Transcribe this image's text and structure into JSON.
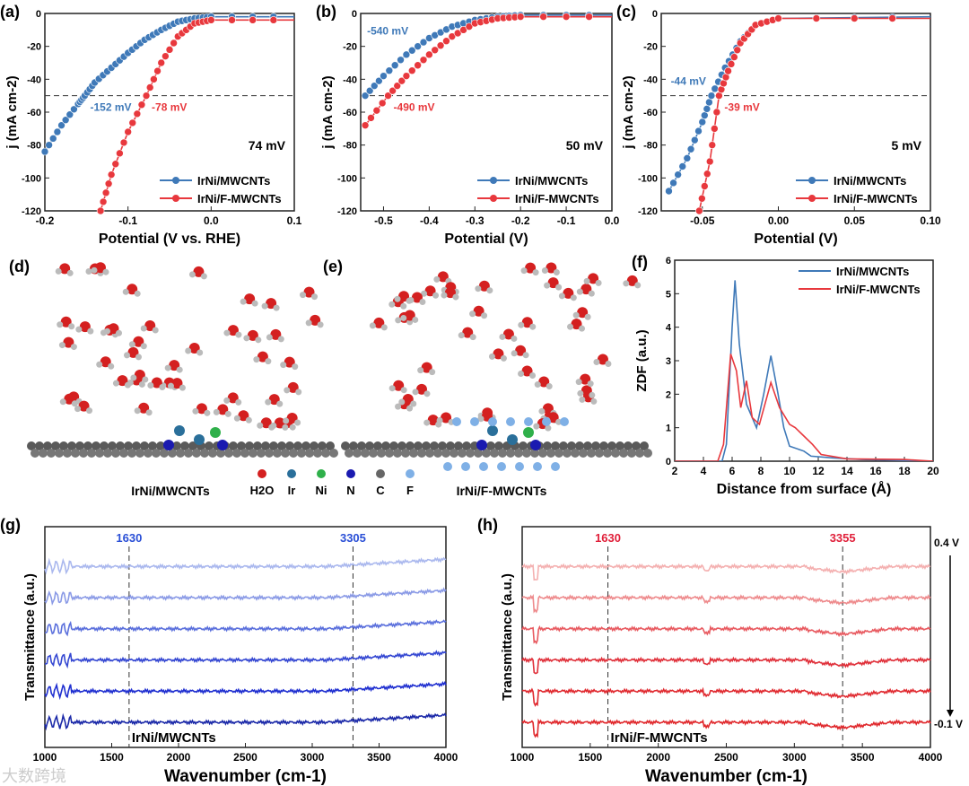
{
  "colors": {
    "blue": "#3f79b8",
    "red": "#e8383d",
    "darkblue": "#1f2fd0"
  },
  "watermark": "大数跨境",
  "chart_data": [
    {
      "id": "a",
      "type": "line",
      "panel_label": "(a)",
      "xlabel": "Potential (V vs. RHE)",
      "ylabel": "j (mA cm-2)",
      "xlim": [
        -0.2,
        0.1
      ],
      "ylim": [
        -120,
        0
      ],
      "xticks": [
        -0.2,
        -0.1,
        0.0,
        0.1
      ],
      "xtick_labels": [
        "-0.2",
        "-0.1",
        "0.0",
        "0.1"
      ],
      "yticks": [
        0,
        -20,
        -40,
        -60,
        -80,
        -100,
        -120
      ],
      "ytick_labels": [
        "0",
        "-20",
        "-40",
        "-60",
        "-80",
        "-100",
        "-120"
      ],
      "reference_line": -50,
      "note": "74 mV",
      "annotations": [
        {
          "text": "-152 mV",
          "series": 0,
          "x": -0.152
        },
        {
          "text": "-78 mV",
          "series": 1,
          "x": -0.078
        }
      ],
      "legend": "bottom-right",
      "series": [
        {
          "name": "IrNi/MWCNTs",
          "color": "#3f79b8",
          "x": [
            -0.2,
            -0.18,
            -0.16,
            -0.152,
            -0.14,
            -0.12,
            -0.1,
            -0.08,
            -0.06,
            -0.04,
            -0.02,
            0,
            0.1
          ],
          "y": [
            -84,
            -68,
            -55,
            -50,
            -42,
            -33,
            -24,
            -16,
            -10,
            -5,
            -3,
            -2,
            -2
          ]
        },
        {
          "name": "IrNi/F-MWCNTs",
          "color": "#e8383d",
          "x": [
            -0.133,
            -0.12,
            -0.1,
            -0.078,
            -0.06,
            -0.04,
            -0.02,
            0,
            0.1
          ],
          "y": [
            -120,
            -98,
            -72,
            -50,
            -30,
            -14,
            -6,
            -4,
            -4
          ]
        }
      ]
    },
    {
      "id": "b",
      "type": "line",
      "panel_label": "(b)",
      "xlabel": "Potential (V)",
      "ylabel": "j (mA cm-2)",
      "xlim": [
        -0.55,
        0
      ],
      "ylim": [
        -120,
        0
      ],
      "xticks": [
        -0.5,
        -0.4,
        -0.3,
        -0.2,
        -0.1,
        0.0
      ],
      "xtick_labels": [
        "-0.5",
        "-0.4",
        "-0.3",
        "-0.2",
        "-0.1",
        "0.0"
      ],
      "yticks": [
        0,
        -20,
        -40,
        -60,
        -80,
        -100,
        -120
      ],
      "ytick_labels": [
        "0",
        "-20",
        "-40",
        "-60",
        "-80",
        "-100",
        "-120"
      ],
      "reference_line": -50,
      "note": "50 mV",
      "annotations": [
        {
          "text": "-540 mV",
          "series": 0,
          "x": -0.54
        },
        {
          "text": "-490 mV",
          "series": 1,
          "x": -0.49
        }
      ],
      "legend": "bottom-right",
      "series": [
        {
          "name": "IrNi/MWCNTs",
          "color": "#3f79b8",
          "x": [
            -0.54,
            -0.5,
            -0.45,
            -0.4,
            -0.35,
            -0.3,
            -0.25,
            -0.2,
            0
          ],
          "y": [
            -50,
            -38,
            -25,
            -15,
            -8,
            -4,
            -2,
            -1,
            -1
          ]
        },
        {
          "name": "IrNi/F-MWCNTs",
          "color": "#e8383d",
          "x": [
            -0.54,
            -0.49,
            -0.45,
            -0.4,
            -0.35,
            -0.3,
            -0.25,
            -0.2,
            0
          ],
          "y": [
            -68,
            -50,
            -38,
            -25,
            -14,
            -6,
            -3,
            -2,
            -2
          ]
        }
      ]
    },
    {
      "id": "c",
      "type": "line",
      "panel_label": "(c)",
      "xlabel": "Potential (V)",
      "ylabel": "j (mA cm-2)",
      "xlim": [
        -0.077,
        0.1
      ],
      "ylim": [
        -120,
        0
      ],
      "xticks": [
        -0.05,
        0.0,
        0.05,
        0.1
      ],
      "xtick_labels": [
        "-0.05",
        "0.00",
        "0.05",
        "0.10"
      ],
      "yticks": [
        0,
        -20,
        -40,
        -60,
        -80,
        -100,
        -120
      ],
      "ytick_labels": [
        "0",
        "-20",
        "-40",
        "-60",
        "-80",
        "-100",
        "-120"
      ],
      "reference_line": -50,
      "note": "5 mV",
      "annotations": [
        {
          "text": "-44 mV",
          "series": 0,
          "x": -0.044
        },
        {
          "text": "-39 mV",
          "series": 1,
          "x": -0.039
        }
      ],
      "legend": "bottom-right",
      "series": [
        {
          "name": "IrNi/MWCNTs",
          "color": "#3f79b8",
          "x": [
            -0.072,
            -0.06,
            -0.05,
            -0.044,
            -0.035,
            -0.025,
            -0.015,
            0,
            0.1
          ],
          "y": [
            -108,
            -88,
            -66,
            -50,
            -33,
            -17,
            -7,
            -3,
            -2
          ]
        },
        {
          "name": "IrNi/F-MWCNTs",
          "color": "#e8383d",
          "x": [
            -0.052,
            -0.045,
            -0.039,
            -0.033,
            -0.025,
            -0.015,
            0,
            0.1
          ],
          "y": [
            -120,
            -90,
            -50,
            -35,
            -18,
            -7,
            -3,
            -3
          ]
        }
      ]
    },
    {
      "id": "f",
      "type": "line",
      "panel_label": "(f)",
      "xlabel": "Distance from surface (Å)",
      "ylabel": "ZDF (a.u.)",
      "xlim": [
        2,
        20
      ],
      "ylim": [
        0,
        6
      ],
      "xticks": [
        2,
        4,
        6,
        8,
        10,
        12,
        14,
        16,
        18,
        20
      ],
      "xtick_labels": [
        "2",
        "4",
        "6",
        "8",
        "10",
        "12",
        "14",
        "16",
        "18",
        "20"
      ],
      "yticks": [
        0,
        1,
        2,
        3,
        4,
        5,
        6
      ],
      "ytick_labels": [
        "0",
        "1",
        "2",
        "3",
        "4",
        "5",
        "6"
      ],
      "legend": "top-right",
      "series": [
        {
          "name": "IrNi/MWCNTs",
          "color": "#3f79b8",
          "x": [
            2,
            5.3,
            5.6,
            6,
            6.2,
            6.5,
            7,
            7.7,
            8.2,
            8.7,
            9.2,
            9.6,
            10,
            11,
            11.5,
            13,
            15,
            20
          ],
          "y": [
            0,
            0,
            0.5,
            4,
            5.4,
            3.5,
            1.7,
            1.0,
            2,
            3.15,
            2,
            1,
            0.45,
            0.3,
            0.15,
            0.1,
            0.05,
            0
          ]
        },
        {
          "name": "IrNi/F-MWCNTs",
          "color": "#e8383d",
          "x": [
            2,
            5,
            5.4,
            5.9,
            6.3,
            6.6,
            7,
            7.4,
            7.9,
            8.7,
            9.3,
            10,
            10.4,
            11,
            11.6,
            12.2,
            14,
            18,
            20
          ],
          "y": [
            0,
            0,
            0.5,
            3.2,
            2.7,
            1.6,
            2.4,
            1.3,
            1.1,
            2.35,
            1.6,
            1.1,
            1,
            0.75,
            0.5,
            0.2,
            0.07,
            0.05,
            0
          ]
        }
      ]
    },
    {
      "id": "g",
      "type": "line",
      "panel_label": "(g)",
      "xlabel": "Wavenumber (cm-1)",
      "ylabel": "Transmittance (a.u.)",
      "xlim": [
        1000,
        4000
      ],
      "xticks": [
        1000,
        1500,
        2000,
        2500,
        3000,
        3500,
        4000
      ],
      "xtick_labels": [
        "1000",
        "1500",
        "2000",
        "2500",
        "3000",
        "3500",
        "4000"
      ],
      "markers": [
        {
          "x": 1630,
          "text": "1630"
        },
        {
          "x": 3305,
          "text": "3305"
        }
      ],
      "marker_color": "#2a4fd6",
      "sample": "IrNi/MWCNTs",
      "series": [
        {
          "color": "#aab8ee",
          "offset": 5
        },
        {
          "color": "#8a9ae6",
          "offset": 4
        },
        {
          "color": "#5a6fdc",
          "offset": 3
        },
        {
          "color": "#3447d2",
          "offset": 2
        },
        {
          "color": "#1f2fd0",
          "offset": 1
        },
        {
          "color": "#1a28a8",
          "offset": 0
        }
      ]
    },
    {
      "id": "h",
      "type": "line",
      "panel_label": "(h)",
      "xlabel": "Wavenumber (cm-1)",
      "ylabel": "Transmittance (a.u.)",
      "xlim": [
        1000,
        4000
      ],
      "xticks": [
        1000,
        1500,
        2000,
        2500,
        3000,
        3500,
        4000
      ],
      "xtick_labels": [
        "1000",
        "1500",
        "2000",
        "2500",
        "3000",
        "3500",
        "4000"
      ],
      "markers": [
        {
          "x": 1630,
          "text": "1630"
        },
        {
          "x": 3355,
          "text": "3355"
        }
      ],
      "marker_color": "#e0203a",
      "sample": "IrNi/F-MWCNTs",
      "potential_top": "0.4 V",
      "potential_bottom": "-0.1 V",
      "series": [
        {
          "color": "#f4b0b0",
          "offset": 5
        },
        {
          "color": "#ee8a8c",
          "offset": 4
        },
        {
          "color": "#e85a60",
          "offset": 3
        },
        {
          "color": "#e0303a",
          "offset": 2
        },
        {
          "color": "#e02a30",
          "offset": 1
        },
        {
          "color": "#e0282c",
          "offset": 0
        }
      ]
    }
  ],
  "structures": {
    "d": {
      "panel_label": "(d)",
      "caption": "IrNi/MWCNTs"
    },
    "e": {
      "panel_label": "(e)",
      "caption": "IrNi/F-MWCNTs"
    },
    "legend": [
      {
        "label": "H2O",
        "color": "#d42020"
      },
      {
        "label": "Ir",
        "color": "#2a6f9a"
      },
      {
        "label": "Ni",
        "color": "#2fb04a"
      },
      {
        "label": "N",
        "color": "#1a1ab0"
      },
      {
        "label": "C",
        "color": "#666666"
      },
      {
        "label": "F",
        "color": "#7fb0e6"
      }
    ]
  }
}
